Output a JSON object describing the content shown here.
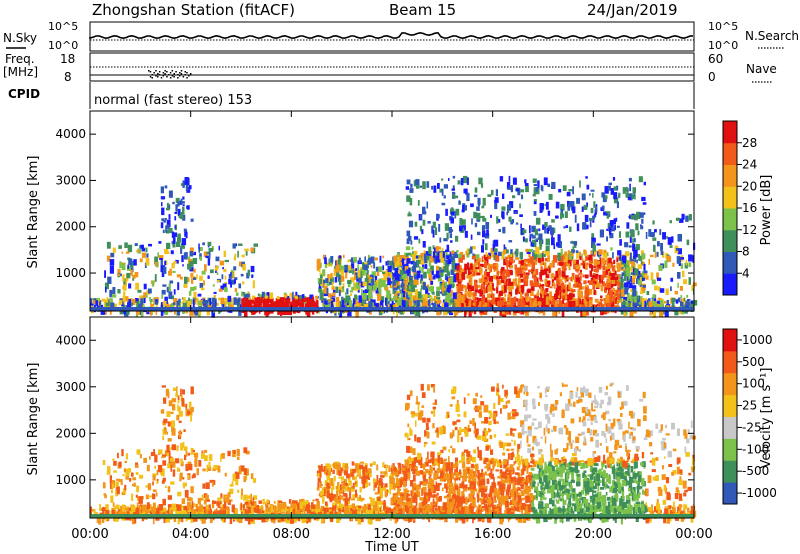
{
  "header": {
    "station": "Zhongshan Station (fitACF)",
    "beam": "Beam 15",
    "date": "24/Jan/2019"
  },
  "status_panels": {
    "nsky_label": "N.Sky",
    "nsky_ticks": [
      "10^5",
      "10^0"
    ],
    "nsearch_label": "N.Search",
    "nsearch_ticks": [
      "10^5",
      "10^0"
    ],
    "freq_label_line1": "Freq.",
    "freq_label_line2": "[MHz]",
    "freq_ticks": [
      "18",
      "8"
    ],
    "nave_label": "Nave",
    "nave_ticks": [
      "60",
      "0"
    ],
    "cpid_label": "CPID",
    "cpid_text": "normal (fast stereo) 153"
  },
  "colors": {
    "power_scale": [
      "#1a1aff",
      "#2f58b8",
      "#3f8f5a",
      "#7cc24a",
      "#f2c21a",
      "#f2951a",
      "#f25a1a",
      "#e01010"
    ],
    "velocity_scale": [
      "#e01010",
      "#f25a1a",
      "#f2951a",
      "#f2c21a",
      "#c8c8c8",
      "#7cc24a",
      "#3f8f5a",
      "#2f58b8"
    ]
  },
  "chart_data": [
    {
      "type": "heatmap",
      "panel": "power",
      "ylabel": "Slant Range [km]",
      "xlabel": "",
      "ylim": [
        180,
        4500
      ],
      "yticks": [
        "1000",
        "2000",
        "3000",
        "4000"
      ],
      "xlim_hours": [
        0,
        24
      ],
      "colorbar_label": "Power [dB]",
      "colorbar_ticks": [
        "4",
        "8",
        "12",
        "16",
        "20",
        "24",
        "28"
      ],
      "colorbar_range": [
        0,
        32
      ]
    },
    {
      "type": "heatmap",
      "panel": "velocity",
      "ylabel": "Slant Range [km]",
      "xlabel": "Time UT",
      "ylim": [
        180,
        4500
      ],
      "yticks": [
        "1000",
        "2000",
        "3000",
        "4000"
      ],
      "xlim_hours": [
        0,
        24
      ],
      "xticks": [
        "00:00",
        "04:00",
        "08:00",
        "12:00",
        "16:00",
        "20:00",
        "00:00"
      ],
      "colorbar_label": "Velocity [m s⁻¹]",
      "colorbar_ticks": [
        "1000",
        "500",
        "100",
        "25",
        "-25",
        "-100",
        "-500",
        "-1000"
      ]
    }
  ]
}
